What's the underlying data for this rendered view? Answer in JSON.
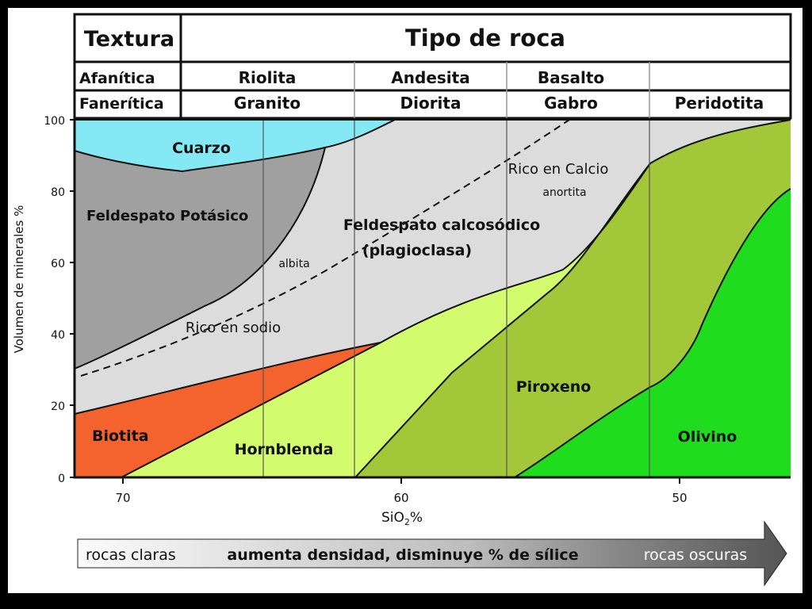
{
  "header": {
    "textura_label": "Textura",
    "tipo_label": "Tipo de roca",
    "afanitica_label": "Afanítica",
    "faneritica_label": "Fanerítica",
    "afanitica_rocks": [
      "Riolita",
      "Andesita",
      "Basalto",
      ""
    ],
    "faneritica_rocks": [
      "Granito",
      "Diorita",
      "Gabro",
      "Peridotita"
    ]
  },
  "axes": {
    "ylabel": "Volumen de minerales %",
    "xlabel": "SiO",
    "xlabel_sub": "2",
    "xlabel_suffix": "%",
    "y_ticks": [
      "100",
      "80",
      "60",
      "40",
      "20",
      "0"
    ],
    "x_ticks": [
      "70",
      "60",
      "50"
    ]
  },
  "minerals": {
    "cuarzo": "Cuarzo",
    "feldespato_k": "Feldespato Potásico",
    "plagioclasa_1": "Feldespato calcosódico",
    "plagioclasa_2": "(plagioclasa)",
    "albita": "albita",
    "anortita": "anortita",
    "rico_sodio": "Rico en sodio",
    "rico_calcio": "Rico en Calcio",
    "biotita": "Biotita",
    "hornblenda": "Hornblenda",
    "piroxeno": "Piroxeno",
    "olivino": "Olivino"
  },
  "bottom_arrow": {
    "left": "rocas claras",
    "middle": "aumenta densidad, disminuye % de sílice",
    "right": "rocas oscuras"
  },
  "colors": {
    "cuarzo": "#84e9f5",
    "feldespato_k": "#a0a0a0",
    "plagioclasa": "#dcdcdc",
    "biotita": "#f4622e",
    "hornblenda": "#d3fb6e",
    "piroxeno": "#a2c83a",
    "olivino": "#1fdc1f"
  }
}
